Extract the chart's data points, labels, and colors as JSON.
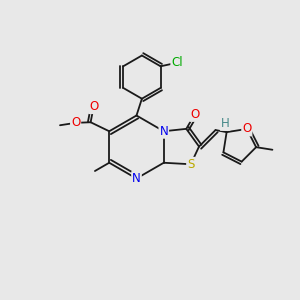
{
  "bg_color": "#e8e8e8",
  "bond_color": "#1a1a1a",
  "atom_colors": {
    "N": "#0000ee",
    "O": "#ee0000",
    "S": "#bbaa00",
    "Cl": "#00aa00",
    "H": "#448888",
    "C": "#1a1a1a"
  },
  "lw": 1.3,
  "fs": 8.5
}
